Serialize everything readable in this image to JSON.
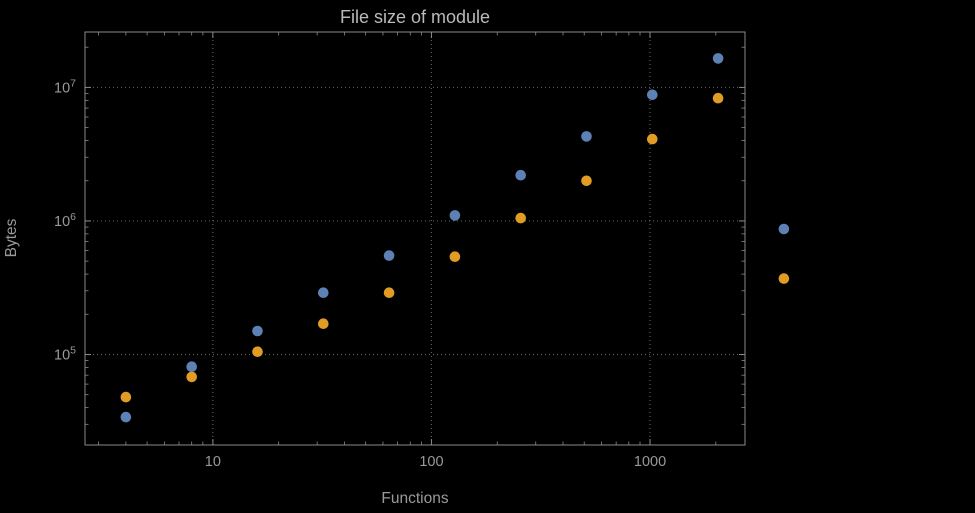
{
  "colors": {
    "background": "#000000",
    "frame": "#8a8a8a",
    "grid": "#5c5c5c",
    "title_text": "#bababa",
    "axis_text": "#999999",
    "series_blue": "#5e81b5",
    "series_orange": "#e19c24"
  },
  "chart_data": {
    "type": "scatter",
    "title": "File size of module",
    "xlabel": "Functions",
    "ylabel": "Bytes",
    "xscale": "log",
    "yscale": "log",
    "grid": "dotted-major",
    "legend": "none",
    "xlim": [
      2.6,
      2720
    ],
    "ylim": [
      21000,
      26000000
    ],
    "x": [
      4,
      8,
      16,
      32,
      64,
      128,
      256,
      512,
      1024,
      2048,
      4096
    ],
    "series": [
      {
        "name": "series-blue",
        "color": "#5e81b5",
        "values": [
          34000,
          81000,
          150000,
          290000,
          550000,
          1100000,
          2200000,
          4300000,
          8800000,
          16500000,
          870000
        ]
      },
      {
        "name": "series-orange",
        "color": "#e19c24",
        "values": [
          48000,
          68000,
          105000,
          170000,
          290000,
          540000,
          1050000,
          2000000,
          4100000,
          8300000,
          370000
        ]
      }
    ],
    "x_ticks": [
      {
        "value": 10,
        "label": "10"
      },
      {
        "value": 100,
        "label": "100"
      },
      {
        "value": 1000,
        "label": "1000"
      }
    ],
    "y_ticks": [
      {
        "value": 100000,
        "base": "10",
        "exp": "5"
      },
      {
        "value": 1000000,
        "base": "10",
        "exp": "6"
      },
      {
        "value": 10000000,
        "base": "10",
        "exp": "7"
      }
    ]
  }
}
